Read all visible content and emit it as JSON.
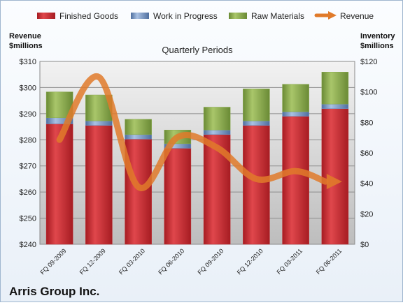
{
  "chart_data": {
    "type": "bar",
    "company": "Arris Group Inc.",
    "plot_title": "Quarterly Periods",
    "left_axis_title_line1": "Revenue",
    "left_axis_title_line2": "$millions",
    "right_axis_title_line1": "Inventory",
    "right_axis_title_line2": "$millions",
    "categories": [
      "FQ 09-2009",
      "FQ 12-2009",
      "FQ 03-2010",
      "FQ 06-2010",
      "FQ 09-2010",
      "FQ 12-2010",
      "FQ 03-2011",
      "FQ 06-2011"
    ],
    "left_ylim": [
      240,
      310
    ],
    "left_ticks": [
      "$310",
      "$300",
      "$290",
      "$280",
      "$270",
      "$260",
      "$250",
      "$240"
    ],
    "right_ylim": [
      0,
      120
    ],
    "right_ticks": [
      "$120",
      "$100",
      "$80",
      "$60",
      "$40",
      "$20",
      "$0"
    ],
    "stack_series": [
      {
        "name": "Finished Goods",
        "color": "#c0292e",
        "values": [
          79,
          78,
          69,
          63,
          72,
          78,
          84,
          89
        ]
      },
      {
        "name": "Work in Progress",
        "color": "#6f8fbf",
        "values": [
          4,
          3,
          3,
          3,
          3,
          3,
          3,
          3
        ]
      },
      {
        "name": "Raw Materials",
        "color": "#86a84a",
        "values": [
          17,
          17,
          10,
          9,
          15,
          21,
          18,
          21
        ]
      }
    ],
    "line_series": {
      "name": "Revenue",
      "color": "#e07a2a",
      "values": [
        280,
        304,
        262,
        281,
        277,
        265,
        268,
        264
      ]
    },
    "grid": true,
    "legend_position": "top"
  }
}
